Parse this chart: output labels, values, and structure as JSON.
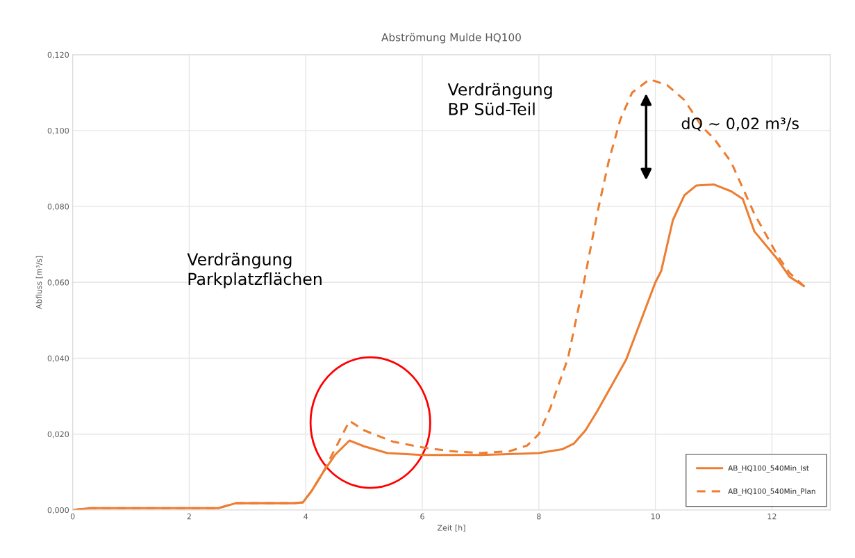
{
  "chart_data": {
    "type": "line",
    "title": "Abströmung Mulde HQ100",
    "xlabel": "Zeit [h]",
    "ylabel": "Abfluss [m³/s]",
    "xlim": [
      0,
      13
    ],
    "xticks": [
      0,
      2,
      4,
      6,
      8,
      10,
      12
    ],
    "ylim": [
      0,
      0.12
    ],
    "yticks": [
      {
        "value": 0,
        "label": "0,000"
      },
      {
        "value": 0.02,
        "label": "0,020"
      },
      {
        "value": 0.04,
        "label": "0,040"
      },
      {
        "value": 0.06,
        "label": "0,060"
      },
      {
        "value": 0.08,
        "label": "0,080"
      },
      {
        "value": 0.1,
        "label": "0,100"
      },
      {
        "value": 0.12,
        "label": "0,120"
      }
    ],
    "grid": true,
    "legend": "bottom right",
    "annotations": [
      "Verdrängung\nParkplatzflächen",
      "Verdrängung\nBP Süd-Teil",
      "dQ ~ 0,02 m³/s"
    ],
    "series": [
      {
        "name": "AB_HQ100_540Min_Ist",
        "color": "#ed7d31",
        "line_style": "solid",
        "x": [
          0,
          0.3,
          1,
          2,
          2.5,
          2.8,
          3.5,
          3.8,
          3.95,
          4.1,
          4.3,
          4.5,
          4.75,
          5.0,
          5.4,
          6,
          7,
          8,
          8.4,
          8.6,
          8.8,
          9.0,
          9.5,
          10.0,
          10.1,
          10.3,
          10.5,
          10.7,
          11.0,
          11.3,
          11.5,
          11.7,
          12.1,
          12.3,
          12.55
        ],
        "values": [
          0,
          0.0005,
          0.0005,
          0.0005,
          0.0005,
          0.0018,
          0.0018,
          0.0018,
          0.002,
          0.005,
          0.01,
          0.0145,
          0.0183,
          0.0168,
          0.015,
          0.0145,
          0.0145,
          0.015,
          0.016,
          0.0175,
          0.021,
          0.026,
          0.0397,
          0.06,
          0.063,
          0.0764,
          0.083,
          0.0855,
          0.0858,
          0.084,
          0.082,
          0.0734,
          0.066,
          0.0615,
          0.059
        ]
      },
      {
        "name": "AB_HQ100_540Min_Plan",
        "color": "#ed7d31",
        "line_style": "dashed",
        "x": [
          0,
          0.3,
          1,
          2,
          2.5,
          2.8,
          3.5,
          3.8,
          3.95,
          4.1,
          4.3,
          4.5,
          4.75,
          5.0,
          5.5,
          6,
          6.5,
          7,
          7.5,
          7.8,
          8.0,
          8.2,
          8.5,
          8.8,
          9.0,
          9.2,
          9.4,
          9.6,
          9.9,
          10.2,
          10.5,
          10.8,
          11.0,
          11.3,
          11.7,
          12.1,
          12.3,
          12.55
        ],
        "values": [
          0,
          0.0005,
          0.0005,
          0.0005,
          0.0005,
          0.0018,
          0.0018,
          0.0018,
          0.002,
          0.005,
          0.01,
          0.016,
          0.0235,
          0.021,
          0.018,
          0.0165,
          0.0155,
          0.015,
          0.0155,
          0.017,
          0.02,
          0.027,
          0.04,
          0.062,
          0.078,
          0.092,
          0.103,
          0.11,
          0.1135,
          0.112,
          0.108,
          0.101,
          0.098,
          0.0917,
          0.078,
          0.067,
          0.0625,
          0.059
        ]
      }
    ]
  }
}
